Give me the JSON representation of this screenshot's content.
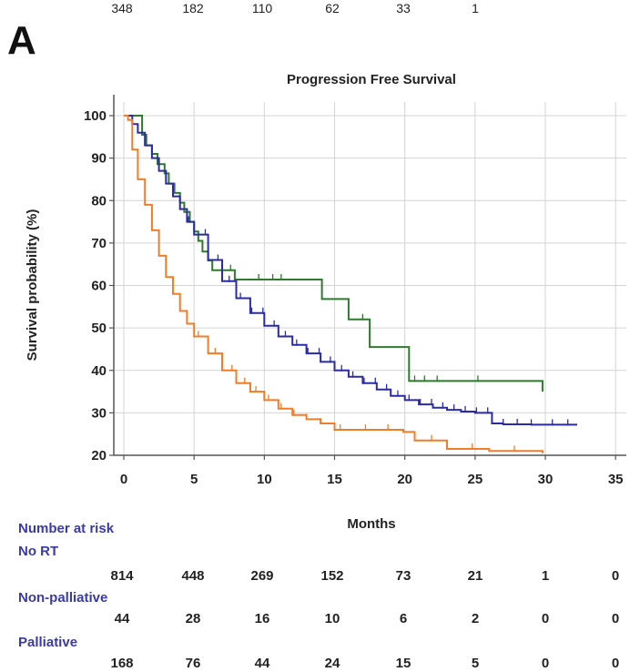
{
  "panel_letter": "A",
  "top_numbers": [
    "348",
    "182",
    "110",
    "62",
    "33",
    "1"
  ],
  "risk_table": {
    "title": "Number at risk",
    "groups": [
      {
        "name": "No RT",
        "counts": [
          "814",
          "448",
          "269",
          "152",
          "73",
          "21",
          "1",
          "0"
        ]
      },
      {
        "name": "Non-palliative",
        "counts": [
          "44",
          "28",
          "16",
          "10",
          "6",
          "2",
          "0",
          "0"
        ]
      },
      {
        "name": "Palliative",
        "counts": [
          "168",
          "76",
          "44",
          "24",
          "15",
          "5",
          "0",
          "0"
        ]
      }
    ]
  },
  "colors": {
    "no_rt": "#2b2ba8",
    "non_palliative": "#2e7a2e",
    "palliative": "#f07d28",
    "risk_label": "#3a3aa8",
    "grid": "#d4d4d4"
  },
  "chart_data": {
    "type": "line",
    "subtype": "kaplan-meier-step",
    "title": "Progression Free Survival",
    "xlabel": "Months",
    "ylabel": "Survival probability (%)",
    "xlim": [
      0,
      35
    ],
    "ylim": [
      20,
      100
    ],
    "xticks": [
      0,
      5,
      10,
      15,
      20,
      25,
      30,
      35
    ],
    "yticks": [
      20,
      30,
      40,
      50,
      60,
      70,
      80,
      90,
      100
    ],
    "grid": true,
    "series": [
      {
        "key": "non_palliative",
        "x": [
          0,
          0.3,
          1.3,
          1.6,
          2.0,
          2.4,
          2.9,
          3.2,
          3.6,
          4.0,
          4.3,
          4.7,
          5.0,
          5.3,
          5.6,
          6.0,
          6.3,
          7.4,
          7.9,
          8.7,
          14.1,
          15.1,
          16.0,
          17.5,
          20.3,
          29.8
        ],
        "y": [
          100,
          100,
          95.5,
          93,
          91,
          88.6,
          86.4,
          84,
          81.8,
          79.5,
          77.3,
          75,
          72.7,
          70.5,
          68,
          65.9,
          63.6,
          63.6,
          61.4,
          61.4,
          56.8,
          56.8,
          52,
          45.5,
          37.5,
          35
        ],
        "censor_x": [
          7.6,
          9.6,
          10.6,
          11.2,
          17.0,
          20.7,
          21.4,
          22.3,
          25.2
        ]
      },
      {
        "key": "no_rt",
        "x": [
          0,
          0.3,
          0.6,
          1.0,
          1.5,
          2.0,
          2.5,
          3.0,
          3.5,
          4.0,
          4.5,
          5.0,
          6.0,
          7.0,
          8.0,
          9.0,
          10.0,
          11.0,
          12.0,
          13.0,
          14.0,
          15.0,
          16.0,
          17.0,
          18.0,
          19.0,
          20.0,
          21.0,
          22.0,
          23.0,
          24.0,
          25.0,
          26.2,
          27.0,
          29.0,
          32.2
        ],
        "y": [
          100,
          100,
          98,
          96,
          93,
          90,
          87,
          84,
          81,
          78,
          75,
          72,
          66,
          61,
          57,
          53.5,
          50.5,
          48,
          46,
          44,
          42,
          40,
          38.5,
          37,
          35.5,
          34,
          33,
          32,
          31.2,
          30.7,
          30.3,
          30,
          27.5,
          27.3,
          27.2,
          27
        ],
        "censor_x": [
          3.5,
          4.6,
          5.8,
          6.7,
          7.5,
          8.3,
          9.1,
          9.9,
          10.7,
          11.5,
          12.3,
          13.1,
          13.9,
          14.7,
          15.5,
          16.3,
          17.1,
          17.9,
          18.7,
          19.5,
          20.3,
          21.1,
          21.9,
          22.7,
          23.5,
          24.3,
          25.1,
          25.9,
          27.0,
          28.0,
          29.0,
          30.5,
          31.6
        ]
      },
      {
        "key": "palliative",
        "x": [
          0,
          0.3,
          0.6,
          1.0,
          1.5,
          2.0,
          2.5,
          3.0,
          3.5,
          4.0,
          4.5,
          5.0,
          6.0,
          7.0,
          8.0,
          9.0,
          10.0,
          11.0,
          12.0,
          13.0,
          14.0,
          15.0,
          19.9,
          20.7,
          23.0,
          26.0,
          29.8
        ],
        "y": [
          100,
          99,
          92,
          85,
          79,
          73,
          67,
          62,
          58,
          54,
          51,
          48,
          44,
          40,
          37,
          35,
          33,
          31,
          29.5,
          28.5,
          27.5,
          26,
          25.5,
          23.5,
          21.5,
          21,
          20.5
        ],
        "censor_x": [
          5.3,
          6.5,
          7.7,
          8.6,
          9.4,
          10.3,
          11.2,
          12.1,
          13.0,
          14.0,
          15.4,
          17.2,
          18.8,
          21.9,
          24.8,
          27.8
        ]
      }
    ]
  }
}
